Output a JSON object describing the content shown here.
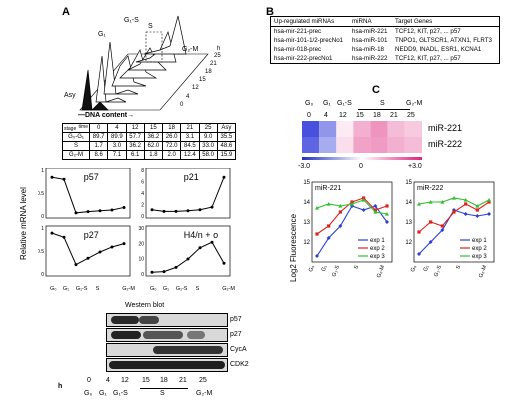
{
  "panel_a": {
    "letter": "A",
    "histogram": {
      "phase_labels": [
        "G₁-S",
        "S",
        "G₁",
        "G₂-M",
        "Asy"
      ],
      "h_label": "h",
      "depth_ticks": [
        "25",
        "21",
        "18",
        "15",
        "12",
        "4",
        "0"
      ],
      "x_label": "—DNA content→"
    },
    "table": {
      "header_time": "time",
      "header_stage": "stage",
      "times": [
        "0",
        "4",
        "12",
        "15",
        "18",
        "21",
        "25",
        "Asy"
      ],
      "rows": [
        {
          "stage": "G₀-G₁",
          "values": [
            "89.7",
            "89.9",
            "57.7",
            "36.2",
            "26.0",
            "3.1",
            "9.0",
            "35.5"
          ]
        },
        {
          "stage": "S",
          "values": [
            "1.7",
            "3.0",
            "36.2",
            "62.0",
            "72.0",
            "84.5",
            "33.0",
            "48.6"
          ]
        },
        {
          "stage": "G₂-M",
          "values": [
            "8.6",
            "7.1",
            "6.1",
            "1.8",
            "2.0",
            "12.4",
            "58.0",
            "15.9"
          ]
        }
      ]
    },
    "ylabel": "Relative mRNA level",
    "plots": [
      {
        "title": "p57"
      },
      {
        "title": "p21"
      },
      {
        "title": "p27"
      },
      {
        "title": "H4/n + o"
      }
    ],
    "x_ticks": [
      "G₀",
      "G₁",
      "G₁-S",
      "S",
      "G₂-M"
    ],
    "western_title": "Western blot",
    "blot_labels": [
      "p57",
      "p27",
      "CycA",
      "CDK2"
    ],
    "h_label": "h",
    "hours": [
      "0",
      "4",
      "12",
      "15",
      "18",
      "21",
      "25"
    ],
    "phase_row": [
      "G₀",
      "G₁",
      "G₁-S",
      "S",
      "G₂-M"
    ]
  },
  "panel_b": {
    "letter": "B",
    "headers": [
      "Up-regulated miRNAs",
      "miRNA",
      "Target Genes"
    ],
    "rows": [
      [
        "hsa-mir-221-prec",
        "hsa-miR-221",
        "TCF12, KIT, p27, ... p57"
      ],
      [
        "hsa-mir-101-1/2-precNo1",
        "hsa-miR-101",
        "TNPO1, GLTSCR1, ATXN1, FLRT3"
      ],
      [
        "hsa-mir-018-prec",
        "hsa-miR-18",
        "NEDD9, INADL, ESR1, KCNA1"
      ],
      [
        "hsa-mir-222-precNo1",
        "hsa-miR-222",
        "TCF12, KIT, p27, ... p57"
      ]
    ]
  },
  "panel_c": {
    "letter": "C",
    "heatmap": {
      "phase_labels": [
        "G₀",
        "G₁",
        "G₁-S",
        "S",
        "G₂-M"
      ],
      "hours": [
        "0",
        "4",
        "12",
        "15",
        "18",
        "21",
        "25"
      ],
      "row_labels": [
        "miR-221",
        "miR-222"
      ],
      "scale": [
        "-3.0",
        "0",
        "+3.0"
      ]
    },
    "ylabel": "Log2 Fluorescence",
    "x_ticks": [
      "G₀",
      "G₁",
      "G₁-S",
      "S",
      "G₂-M"
    ],
    "legend": [
      "exp 1",
      "exp 2",
      "exp 3"
    ],
    "colors": {
      "exp1": "#2b3fd6",
      "exp2": "#e0201b",
      "exp3": "#2fbf2f"
    }
  },
  "chart_data": [
    {
      "type": "line",
      "title": "p57",
      "x": [
        "0",
        "4",
        "12",
        "15",
        "18",
        "21",
        "25"
      ],
      "ylim": [
        0,
        1
      ],
      "series": [
        {
          "values": [
            0.9,
            0.85,
            0.05,
            0.08,
            0.1,
            0.12,
            0.18
          ]
        }
      ]
    },
    {
      "type": "line",
      "title": "p21",
      "x": [
        "0",
        "4",
        "12",
        "15",
        "18",
        "21",
        "25"
      ],
      "ylim": [
        0,
        8
      ],
      "series": [
        {
          "values": [
            1.0,
            0.7,
            0.7,
            0.8,
            1.0,
            1.5,
            7.2
          ]
        }
      ]
    },
    {
      "type": "line",
      "title": "p27",
      "x": [
        "0",
        "4",
        "12",
        "15",
        "18",
        "21",
        "25"
      ],
      "ylim": [
        0,
        1
      ],
      "series": [
        {
          "values": [
            0.95,
            0.85,
            0.2,
            0.35,
            0.5,
            0.62,
            0.7
          ]
        }
      ]
    },
    {
      "type": "line",
      "title": "H4/n + o",
      "x": [
        "0",
        "4",
        "12",
        "15",
        "18",
        "21",
        "25"
      ],
      "ylim": [
        0,
        30
      ],
      "series": [
        {
          "values": [
            0.5,
            1.0,
            4.0,
            10.0,
            18.0,
            22.0,
            7.0
          ]
        }
      ]
    },
    {
      "type": "line",
      "title": "miR-221",
      "ylabel": "Log2 Fluorescence",
      "x": [
        "0",
        "4",
        "12",
        "15",
        "18",
        "21",
        "25"
      ],
      "ylim": [
        11,
        15
      ],
      "series": [
        {
          "name": "exp 1",
          "values": [
            11.3,
            12.2,
            12.8,
            13.8,
            13.6,
            13.8,
            13.0
          ]
        },
        {
          "name": "exp 2",
          "values": [
            12.4,
            12.8,
            13.5,
            14.0,
            14.2,
            13.6,
            13.8
          ]
        },
        {
          "name": "exp 3",
          "values": [
            13.7,
            13.9,
            13.8,
            13.9,
            14.1,
            13.5,
            13.4
          ]
        }
      ]
    },
    {
      "type": "line",
      "title": "miR-222",
      "x": [
        "0",
        "4",
        "12",
        "15",
        "18",
        "21",
        "25"
      ],
      "ylim": [
        11,
        15
      ],
      "series": [
        {
          "name": "exp 1",
          "values": [
            11.4,
            12.0,
            12.6,
            13.6,
            13.4,
            13.3,
            13.4
          ]
        },
        {
          "name": "exp 2",
          "values": [
            12.5,
            13.0,
            12.8,
            13.5,
            13.9,
            13.6,
            14.0
          ]
        },
        {
          "name": "exp 3",
          "values": [
            13.9,
            14.0,
            14.0,
            14.2,
            14.1,
            13.8,
            14.1
          ]
        }
      ]
    },
    {
      "type": "heatmap",
      "rows": [
        "miR-221",
        "miR-222"
      ],
      "columns": [
        "0",
        "4",
        "12",
        "15",
        "18",
        "21",
        "25"
      ],
      "values": [
        [
          -2.5,
          -1.5,
          0.3,
          1.2,
          1.6,
          1.0,
          0.8
        ],
        [
          -2.2,
          -1.2,
          0.5,
          1.4,
          1.5,
          1.2,
          1.0
        ]
      ],
      "range": [
        -3,
        3
      ]
    }
  ]
}
